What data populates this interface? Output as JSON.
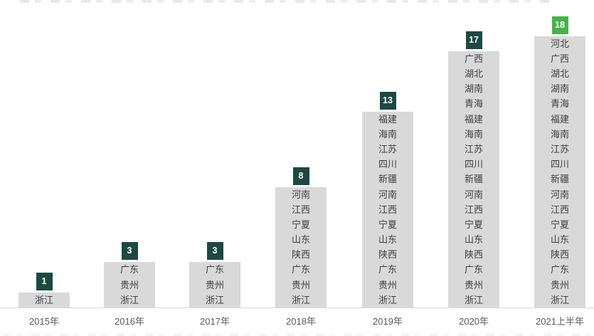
{
  "chart_data": {
    "type": "bar",
    "title": "",
    "xlabel": "",
    "ylabel": "",
    "grid": false,
    "legend": null,
    "categories": [
      "2015年",
      "2016年",
      "2017年",
      "2018年",
      "2019年",
      "2020年",
      "2021上半年"
    ],
    "values": [
      1,
      3,
      3,
      8,
      13,
      17,
      18
    ],
    "series": [
      {
        "category": "2015年",
        "count": 1,
        "badge_color": "#1b4a43",
        "provinces": [
          "浙江"
        ]
      },
      {
        "category": "2016年",
        "count": 3,
        "badge_color": "#1b4a43",
        "provinces": [
          "广东",
          "贵州",
          "浙江"
        ]
      },
      {
        "category": "2017年",
        "count": 3,
        "badge_color": "#1b4a43",
        "provinces": [
          "广东",
          "贵州",
          "浙江"
        ]
      },
      {
        "category": "2018年",
        "count": 8,
        "badge_color": "#1b4a43",
        "provinces": [
          "河南",
          "江西",
          "宁夏",
          "山东",
          "陕西",
          "广东",
          "贵州",
          "浙江"
        ]
      },
      {
        "category": "2019年",
        "count": 13,
        "badge_color": "#1b4a43",
        "provinces": [
          "福建",
          "海南",
          "江苏",
          "四川",
          "新疆",
          "河南",
          "江西",
          "宁夏",
          "山东",
          "陕西",
          "广东",
          "贵州",
          "浙江"
        ]
      },
      {
        "category": "2020年",
        "count": 17,
        "badge_color": "#1b4a43",
        "provinces": [
          "广西",
          "湖北",
          "湖南",
          "青海",
          "福建",
          "海南",
          "江苏",
          "四川",
          "新疆",
          "河南",
          "江西",
          "宁夏",
          "山东",
          "陕西",
          "广东",
          "贵州",
          "浙江"
        ]
      },
      {
        "category": "2021上半年",
        "count": 18,
        "badge_color": "#45b349",
        "provinces": [
          "河北",
          "广西",
          "湖北",
          "湖南",
          "青海",
          "福建",
          "海南",
          "江苏",
          "四川",
          "新疆",
          "河南",
          "江西",
          "宁夏",
          "山东",
          "陕西",
          "广东",
          "贵州",
          "浙江"
        ]
      }
    ],
    "colors": {
      "bar_fill": "#d9d9d9",
      "badge_default": "#1b4a43",
      "badge_highlight": "#45b349",
      "badge_text": "#ffffff",
      "province_text": "#404040",
      "axis_line": "#d9d9d9",
      "category_label": "#595959"
    }
  }
}
